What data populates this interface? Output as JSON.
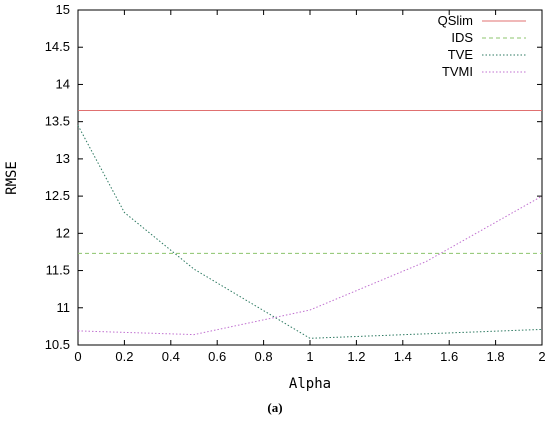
{
  "caption": "(a)",
  "chart_data": {
    "type": "line",
    "xlabel": "Alpha",
    "ylabel": "RMSE",
    "xlim": [
      0,
      2
    ],
    "ylim": [
      10.5,
      15
    ],
    "xticks": [
      0,
      0.2,
      0.4,
      0.6,
      0.8,
      1,
      1.2,
      1.4,
      1.6,
      1.8,
      2
    ],
    "yticks": [
      10.5,
      11,
      11.5,
      12,
      12.5,
      13,
      13.5,
      14,
      14.5,
      15
    ],
    "grid": false,
    "legend_position": "top-right",
    "series": [
      {
        "name": "QSlim",
        "color": "#e07070",
        "dash": "solid",
        "x": [
          0,
          2
        ],
        "y": [
          13.65,
          13.65
        ]
      },
      {
        "name": "IDS",
        "color": "#8cc46c",
        "dash": "dashed",
        "x": [
          0,
          2
        ],
        "y": [
          11.73,
          11.73
        ]
      },
      {
        "name": "TVE",
        "color": "#2e7a62",
        "dash": "dotted",
        "x": [
          0,
          0.2,
          0.5,
          1,
          1.5,
          2
        ],
        "y": [
          13.45,
          12.28,
          11.52,
          10.59,
          10.65,
          10.71
        ]
      },
      {
        "name": "TVMI",
        "color": "#c070d0",
        "dash": "dotted",
        "x": [
          0,
          0.5,
          1,
          1.5,
          2
        ],
        "y": [
          10.69,
          10.64,
          10.97,
          11.62,
          12.5
        ]
      }
    ]
  }
}
